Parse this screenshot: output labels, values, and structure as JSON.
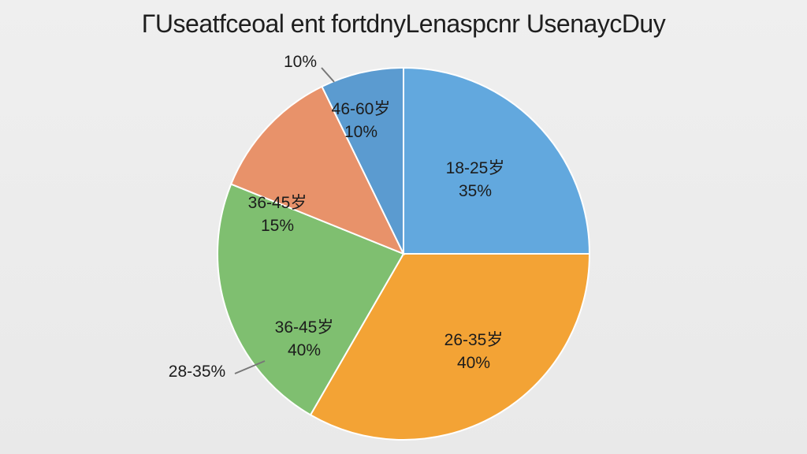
{
  "chart_data": {
    "type": "pie",
    "title": "ΓUseatfceoal ent fortdnyLenaspcnr UsenaycDuy",
    "slices": [
      {
        "category": "18-25岁",
        "percent": 35,
        "label": "35%",
        "color": "#62a8de"
      },
      {
        "category": "26-35岁",
        "percent": 40,
        "label": "40%",
        "color": "#f3a335"
      },
      {
        "category": "36-45岁",
        "percent": 40,
        "label": "40%",
        "color": "#7fbf70"
      },
      {
        "category": "36-45岁",
        "percent": 15,
        "label": "15%",
        "color": "#e8926a"
      },
      {
        "category": "46-60岁",
        "percent": 10,
        "label": "10%",
        "color": "#5b9bd0"
      }
    ],
    "callouts": [
      {
        "text": "10%"
      },
      {
        "text": "28-35%"
      }
    ],
    "legend": "none"
  }
}
